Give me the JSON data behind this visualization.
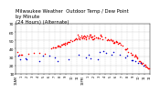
{
  "title": "Milwaukee Weather  Outdoor Temp / Dew Point\nby Minute\n(24 Hours) (Alternate)",
  "title_fontsize": 3.8,
  "bg_color": "#ffffff",
  "plot_bg": "#ffffff",
  "grid_color": "#aaaaaa",
  "red_color": "#ff0000",
  "blue_color": "#0000cc",
  "xlim": [
    0,
    1440
  ],
  "ylim": [
    10,
    70
  ],
  "yticks": [
    10,
    20,
    30,
    40,
    50,
    60,
    70
  ],
  "ylabel_fontsize": 3.2,
  "xlabel_fontsize": 2.5,
  "marker_size": 1.2
}
